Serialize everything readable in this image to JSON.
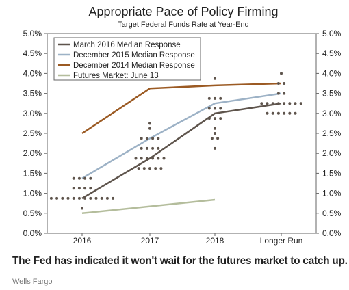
{
  "chart_data": {
    "type": "line",
    "title": "Appropriate Pace of Policy Firming",
    "subtitle": "Target Federal Funds Rate at Year-End",
    "categories": [
      "2016",
      "2017",
      "2018",
      "Longer Run"
    ],
    "y_ticks": [
      "0.0%",
      "0.5%",
      "1.0%",
      "1.5%",
      "2.0%",
      "2.5%",
      "3.0%",
      "3.5%",
      "4.0%",
      "4.5%",
      "5.0%"
    ],
    "ylim": [
      0,
      5
    ],
    "grid": false,
    "legend_position": "top-left",
    "series": [
      {
        "name": "March 2016 Median Response",
        "color": "#5e544c",
        "x": [
          0,
          1,
          2,
          3
        ],
        "values": [
          0.875,
          1.875,
          3.0,
          3.25
        ]
      },
      {
        "name": "December 2015 Median Response",
        "color": "#9db2c6",
        "x": [
          0,
          1,
          2,
          3
        ],
        "values": [
          1.375,
          2.375,
          3.25,
          3.5
        ]
      },
      {
        "name": "December 2014 Median Response",
        "color": "#9b5a23",
        "x": [
          0,
          1,
          2,
          3
        ],
        "values": [
          2.5,
          3.625,
          3.7,
          3.75
        ]
      },
      {
        "name": "Futures Market: June 13",
        "color": "#b4bd9c",
        "x": [
          0,
          2
        ],
        "values": [
          0.5,
          0.84
        ]
      }
    ],
    "dots": {
      "color": "#5e544c",
      "groups": [
        {
          "x": 0,
          "levels": [
            [
              1.375,
              4
            ],
            [
              1.125,
              4
            ],
            [
              0.875,
              12
            ],
            [
              0.625,
              1
            ]
          ]
        },
        {
          "x": 1,
          "levels": [
            [
              2.75,
              1
            ],
            [
              2.625,
              1
            ],
            [
              2.375,
              4
            ],
            [
              2.125,
              4
            ],
            [
              1.875,
              6
            ],
            [
              1.625,
              5
            ]
          ]
        },
        {
          "x": 2,
          "levels": [
            [
              3.875,
              1
            ],
            [
              3.375,
              3
            ],
            [
              3.125,
              3
            ],
            [
              2.875,
              3
            ],
            [
              2.625,
              1
            ],
            [
              2.5,
              1
            ],
            [
              2.375,
              2
            ],
            [
              2.125,
              1
            ]
          ]
        },
        {
          "x": 3,
          "levels": [
            [
              4.0,
              1
            ],
            [
              3.75,
              2
            ],
            [
              3.5,
              2
            ],
            [
              3.25,
              8
            ],
            [
              3.0,
              6
            ]
          ]
        }
      ]
    }
  },
  "caption": "The Fed has indicated it won't wait for the futures market to catch up.",
  "source": "Wells Fargo"
}
